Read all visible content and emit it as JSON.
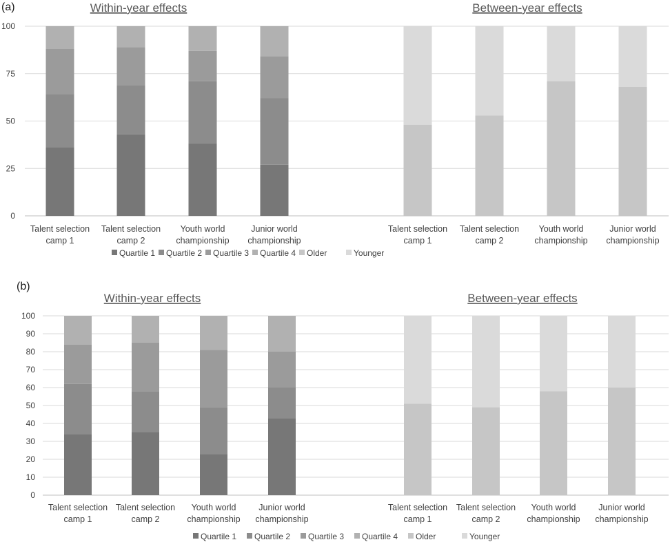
{
  "series_colors": {
    "Quartile 1": "#777777",
    "Quartile 2": "#8c8c8c",
    "Quartile 3": "#9b9b9b",
    "Quartile 4": "#b1b1b1",
    "Older": "#c6c6c6",
    "Younger": "#dadada"
  },
  "chart_data": [
    {
      "panel_label": "(a)",
      "type": "bar",
      "stacked": true,
      "ylim": [
        0,
        100
      ],
      "yticks": [
        "0",
        "25",
        "50",
        "75",
        "100"
      ],
      "legend": [
        "Quartile 1",
        "Quartile 2",
        "Quartile 3",
        "Quartile 4",
        "Older",
        "Younger"
      ],
      "groups": [
        {
          "title": "Within-year effects",
          "categories": [
            [
              "Talent selection",
              "camp 1"
            ],
            [
              "Talent selection",
              "camp 2"
            ],
            [
              "Youth world",
              "championship"
            ],
            [
              "Junior world",
              "championship"
            ]
          ],
          "series": [
            {
              "name": "Quartile 1",
              "values": [
                36,
                43,
                38,
                27
              ]
            },
            {
              "name": "Quartile 2",
              "values": [
                28,
                26,
                33,
                35
              ]
            },
            {
              "name": "Quartile 3",
              "values": [
                24,
                20,
                16,
                22
              ]
            },
            {
              "name": "Quartile 4",
              "values": [
                12,
                11,
                13,
                16
              ]
            }
          ]
        },
        {
          "title": "Between-year effects",
          "categories": [
            [
              "Talent selection",
              "camp 1"
            ],
            [
              "Talent selection",
              "camp 2"
            ],
            [
              "Youth world",
              "championship"
            ],
            [
              "Junior world",
              "championship"
            ]
          ],
          "series": [
            {
              "name": "Older",
              "values": [
                48,
                53,
                71,
                68
              ]
            },
            {
              "name": "Younger",
              "values": [
                52,
                47,
                29,
                32
              ]
            }
          ]
        }
      ]
    },
    {
      "panel_label": "(b)",
      "type": "bar",
      "stacked": true,
      "ylim": [
        0,
        100
      ],
      "yticks": [
        "0",
        "10",
        "20",
        "30",
        "40",
        "50",
        "60",
        "70",
        "80",
        "90",
        "100"
      ],
      "legend": [
        "Quartile 1",
        "Quartile 2",
        "Quartile 3",
        "Quartile 4",
        "Older",
        "Younger"
      ],
      "groups": [
        {
          "title": "Within-year effects",
          "categories": [
            [
              "Talent selection",
              "camp 1"
            ],
            [
              "Talent selection",
              "camp 2"
            ],
            [
              "Youth world",
              "championship"
            ],
            [
              "Junior world",
              "championship"
            ]
          ],
          "series": [
            {
              "name": "Quartile 1",
              "values": [
                34,
                35,
                23,
                43
              ]
            },
            {
              "name": "Quartile 2",
              "values": [
                28,
                23,
                26,
                17
              ]
            },
            {
              "name": "Quartile 3",
              "values": [
                22,
                27,
                32,
                20
              ]
            },
            {
              "name": "Quartile 4",
              "values": [
                16,
                15,
                19,
                20
              ]
            }
          ]
        },
        {
          "title": "Between-year effects",
          "categories": [
            [
              "Talent selection",
              "camp 1"
            ],
            [
              "Talent selection",
              "camp 2"
            ],
            [
              "Youth world",
              "championship"
            ],
            [
              "Junior world",
              "championship"
            ]
          ],
          "series": [
            {
              "name": "Older",
              "values": [
                51,
                49,
                58,
                60
              ]
            },
            {
              "name": "Younger",
              "values": [
                49,
                51,
                42,
                40
              ]
            }
          ]
        }
      ]
    }
  ]
}
